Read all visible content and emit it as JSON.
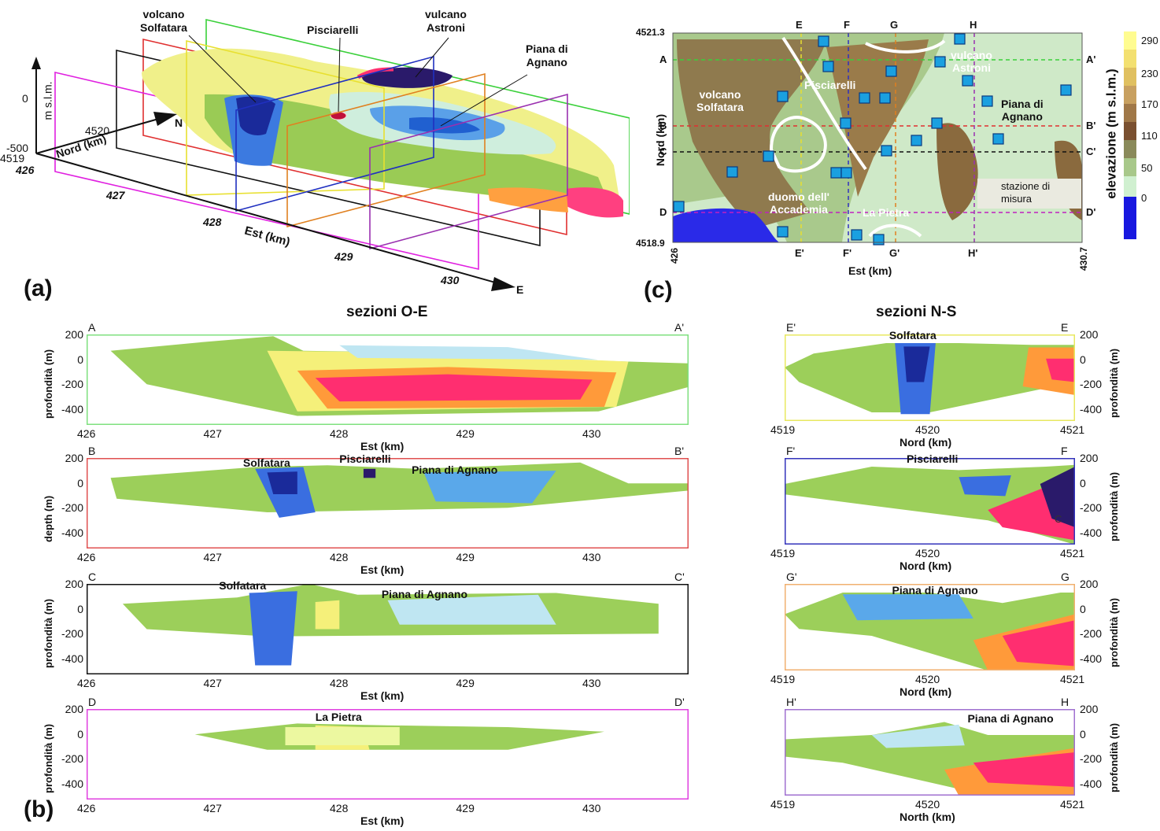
{
  "panel_a": {
    "label": "(a)",
    "annotations": [
      "volcano Solfatara",
      "Pisciarelli",
      "vulcano Astroni",
      "Piana di Agnano"
    ],
    "annotation_lines": {
      "solfatara": [
        "volcano",
        "Solfatara"
      ],
      "pisciarelli": "Pisciarelli",
      "astroni": [
        "vulcano",
        "Astroni"
      ],
      "agnano": [
        "Piana di",
        "Agnano"
      ]
    },
    "z_axis": {
      "label": "m s.l.m.",
      "ticks": [
        "0",
        "-500"
      ]
    },
    "nord_axis": {
      "label": "Nord (km)",
      "ticks": [
        "4519",
        "4520"
      ],
      "arrow": "N"
    },
    "est_axis": {
      "label": "Est (km)",
      "ticks": [
        "426",
        "427",
        "428",
        "429",
        "430"
      ],
      "arrow": "E"
    }
  },
  "panel_c": {
    "label": "(c)",
    "x_axis": {
      "label": "Est (km)",
      "min": "426",
      "max": "430.7"
    },
    "y_axis": {
      "label": "Nord (km)",
      "min": "4518.9",
      "max": "4521.3"
    },
    "profile_top": [
      "E",
      "F",
      "G",
      "H"
    ],
    "profile_bottom": [
      "E'",
      "F'",
      "G'",
      "H'"
    ],
    "profile_left": [
      "A",
      "B",
      "C",
      "D"
    ],
    "profile_right": [
      "A'",
      "B'",
      "C'",
      "D'"
    ],
    "labels": {
      "astroni": [
        "vulcano",
        "Astroni"
      ],
      "pisciarelli": "Pisciarelli",
      "solfatara": [
        "volcano",
        "Solfatara"
      ],
      "agnano": [
        "Piana di",
        "Agnano"
      ],
      "accademia": [
        "duomo dell'",
        "Accademia"
      ],
      "pietra": "La Pietra",
      "station": [
        "stazione di",
        "misura"
      ]
    },
    "colorbar": {
      "title": "elevazione (m s.l.m.)",
      "ticks": [
        "290",
        "230",
        "170",
        "110",
        "50",
        "0"
      ]
    }
  },
  "panel_b": {
    "label": "(b)",
    "title_oe": "sezioni O-E",
    "title_ns": "sezioni N-S",
    "oe_sections": [
      {
        "left": "A",
        "right": "A'",
        "ylabel": "profondità (m)",
        "xlabel": "Est (km)",
        "color": "#7fe07f",
        "labels": []
      },
      {
        "left": "B",
        "right": "B'",
        "ylabel": "depth (m)",
        "xlabel": "Est (km)",
        "color": "#e05050",
        "labels": [
          "Solfatara",
          "Pisciarelli",
          "Piana di Agnano"
        ]
      },
      {
        "left": "C",
        "right": "C'",
        "ylabel": "profondità (m)",
        "xlabel": "Est (km)",
        "color": "#111111",
        "labels": [
          "Solfatara",
          "Piana di Agnano"
        ]
      },
      {
        "left": "D",
        "right": "D'",
        "ylabel": "profondità (m)",
        "xlabel": "Est (km)",
        "color": "#e040e0",
        "labels": [
          "La Pietra"
        ]
      }
    ],
    "ns_sections": [
      {
        "left": "E'",
        "right": "E",
        "ylabel": "profondità (m)",
        "xlabel": "Nord (km)",
        "color": "#e8e860",
        "labels": [
          "Solfatara"
        ]
      },
      {
        "left": "F'",
        "right": "F",
        "ylabel": "profondità (m)",
        "xlabel": "Nord (km)",
        "color": "#3333bb",
        "labels": [
          "Pisciarelli"
        ]
      },
      {
        "left": "G'",
        "right": "G",
        "ylabel": "profondità (m)",
        "xlabel": "Nord (km)",
        "color": "#f0b070",
        "labels": [
          "Piana di Agnano"
        ]
      },
      {
        "left": "H'",
        "right": "H",
        "ylabel": "profondità (m)",
        "xlabel": "North (km)",
        "color": "#a070d0",
        "labels": [
          "Piana di Agnano"
        ]
      }
    ],
    "depth_ticks": [
      "200",
      "0",
      "-200",
      "-400"
    ],
    "est_ticks": [
      "426",
      "427",
      "428",
      "429",
      "430"
    ],
    "nord_ticks": [
      "4519",
      "4520",
      "4521"
    ],
    "f_section_mark": "C"
  }
}
